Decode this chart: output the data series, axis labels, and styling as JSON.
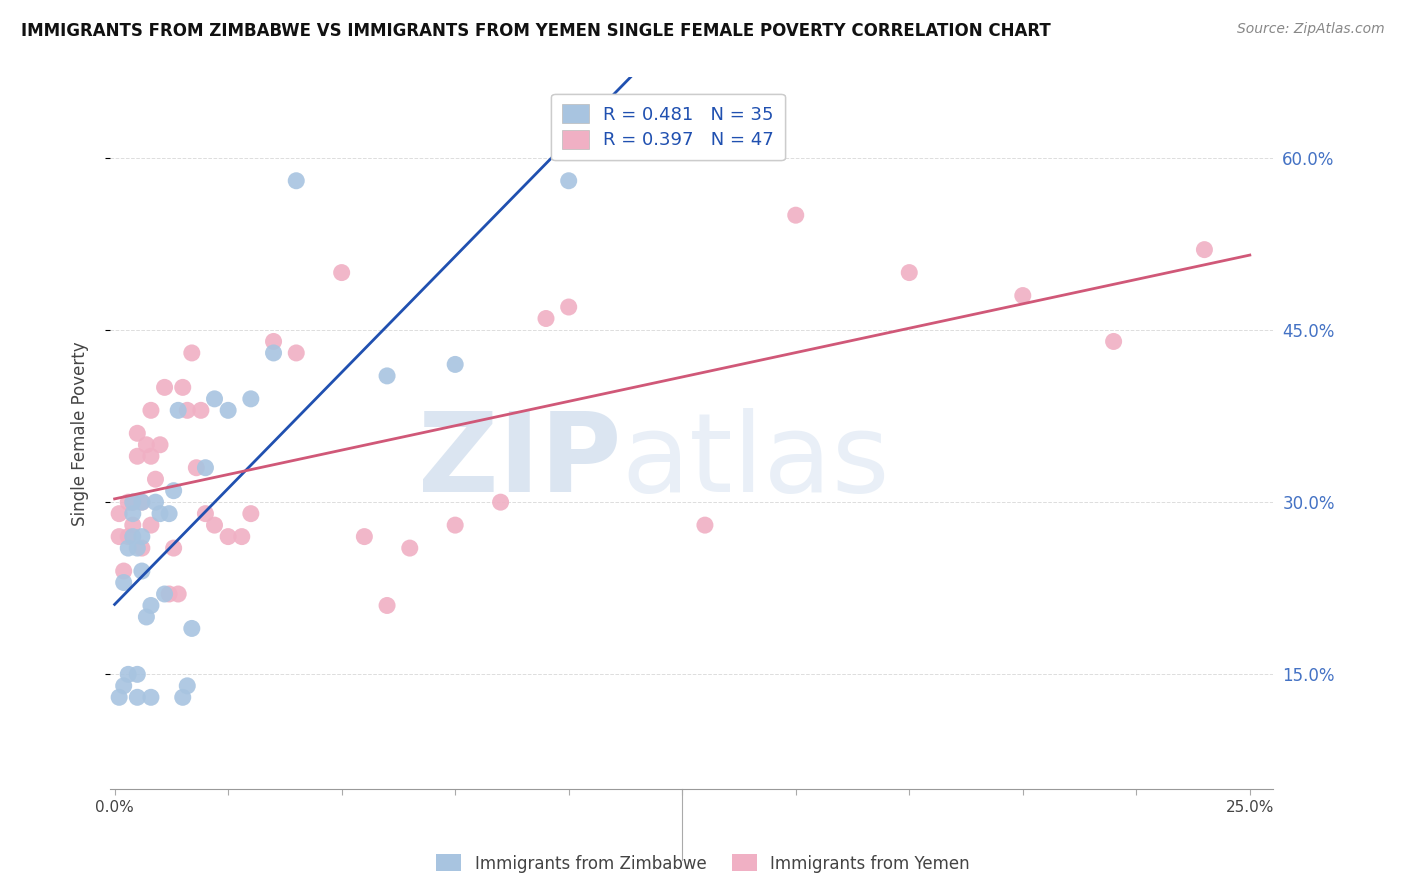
{
  "title": "IMMIGRANTS FROM ZIMBABWE VS IMMIGRANTS FROM YEMEN SINGLE FEMALE POVERTY CORRELATION CHART",
  "source": "Source: ZipAtlas.com",
  "ylabel": "Single Female Poverty",
  "y_ticks": [
    0.15,
    0.3,
    0.45,
    0.6
  ],
  "y_tick_labels": [
    "15.0%",
    "30.0%",
    "45.0%",
    "60.0%"
  ],
  "x_ticks": [
    0.0,
    0.025,
    0.05,
    0.075,
    0.1,
    0.125,
    0.15,
    0.175,
    0.2,
    0.225,
    0.25
  ],
  "x_tick_labels_show": [
    "0.0%",
    "",
    "",
    "",
    "",
    "",
    "",
    "",
    "",
    "",
    "25.0%"
  ],
  "xlim": [
    -0.001,
    0.255
  ],
  "ylim": [
    0.05,
    0.67
  ],
  "r_zimbabwe": 0.481,
  "n_zimbabwe": 35,
  "r_yemen": 0.397,
  "n_yemen": 47,
  "color_zimbabwe": "#a8c4e0",
  "color_yemen": "#f0b0c4",
  "line_color_zimbabwe": "#2050b0",
  "line_color_yemen": "#d05878",
  "legend_label_zimbabwe": "Immigrants from Zimbabwe",
  "legend_label_yemen": "Immigrants from Yemen",
  "watermark_zip": "ZIP",
  "watermark_atlas": "atlas",
  "background_color": "#ffffff",
  "grid_color": "#dddddd",
  "zimbabwe_x": [
    0.001,
    0.002,
    0.002,
    0.003,
    0.003,
    0.004,
    0.004,
    0.004,
    0.005,
    0.005,
    0.005,
    0.006,
    0.006,
    0.006,
    0.007,
    0.008,
    0.008,
    0.009,
    0.01,
    0.011,
    0.012,
    0.013,
    0.014,
    0.015,
    0.016,
    0.017,
    0.02,
    0.022,
    0.025,
    0.03,
    0.035,
    0.04,
    0.06,
    0.075,
    0.1
  ],
  "zimbabwe_y": [
    0.13,
    0.14,
    0.23,
    0.15,
    0.26,
    0.27,
    0.29,
    0.3,
    0.13,
    0.15,
    0.26,
    0.24,
    0.27,
    0.3,
    0.2,
    0.13,
    0.21,
    0.3,
    0.29,
    0.22,
    0.29,
    0.31,
    0.38,
    0.13,
    0.14,
    0.19,
    0.33,
    0.39,
    0.38,
    0.39,
    0.43,
    0.58,
    0.41,
    0.42,
    0.58
  ],
  "yemen_x": [
    0.001,
    0.001,
    0.002,
    0.003,
    0.003,
    0.004,
    0.004,
    0.005,
    0.005,
    0.006,
    0.006,
    0.007,
    0.008,
    0.008,
    0.008,
    0.009,
    0.01,
    0.011,
    0.012,
    0.013,
    0.014,
    0.015,
    0.016,
    0.017,
    0.018,
    0.019,
    0.02,
    0.022,
    0.025,
    0.028,
    0.03,
    0.035,
    0.04,
    0.05,
    0.055,
    0.06,
    0.065,
    0.075,
    0.085,
    0.095,
    0.1,
    0.13,
    0.15,
    0.175,
    0.2,
    0.22,
    0.24
  ],
  "yemen_y": [
    0.27,
    0.29,
    0.24,
    0.27,
    0.3,
    0.28,
    0.3,
    0.34,
    0.36,
    0.26,
    0.3,
    0.35,
    0.28,
    0.34,
    0.38,
    0.32,
    0.35,
    0.4,
    0.22,
    0.26,
    0.22,
    0.4,
    0.38,
    0.43,
    0.33,
    0.38,
    0.29,
    0.28,
    0.27,
    0.27,
    0.29,
    0.44,
    0.43,
    0.5,
    0.27,
    0.21,
    0.26,
    0.28,
    0.3,
    0.46,
    0.47,
    0.28,
    0.55,
    0.5,
    0.48,
    0.44,
    0.52
  ]
}
